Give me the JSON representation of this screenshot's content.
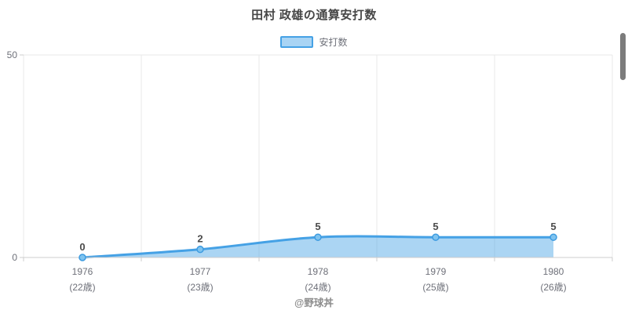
{
  "title": "田村 政雄の通算安打数",
  "legend": {
    "label": "安打数"
  },
  "footer": "@野球丼",
  "colors": {
    "line": "#45a1e5",
    "area_fill": "rgba(69,161,229,0.45)",
    "marker_fill": "#7fc3ef",
    "marker_stroke": "#3d9be0",
    "grid": "#e9e9e9",
    "axis": "#cccccc",
    "tick_label": "#6e7079",
    "value_label": "#4b4b4b",
    "title_color": "#464646",
    "scrollbar": "#7c7c7c"
  },
  "chart_data": {
    "type": "area",
    "title": "田村 政雄の通算安打数",
    "categories": [
      "1976",
      "1977",
      "1978",
      "1979",
      "1980"
    ],
    "category_sublabels": [
      "(22歳)",
      "(23歳)",
      "(24歳)",
      "(25歳)",
      "(26歳)"
    ],
    "series": [
      {
        "name": "安打数",
        "values": [
          0,
          2,
          5,
          5,
          5
        ]
      }
    ],
    "point_labels": [
      "0",
      "2",
      "5",
      "5",
      "5"
    ],
    "xlabel": "",
    "ylabel": "",
    "ylim": [
      0,
      50
    ],
    "yticks": [
      0,
      50
    ],
    "smooth": true,
    "grid": "vertical-boundaries-plus-top",
    "legend_position": "top-center"
  }
}
